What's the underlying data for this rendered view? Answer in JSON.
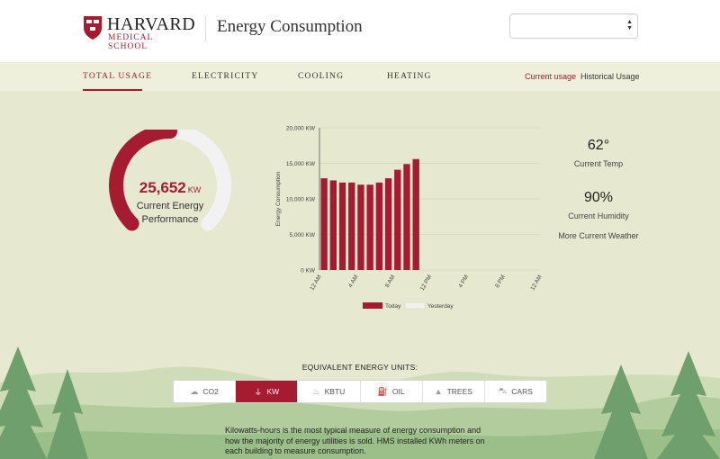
{
  "header": {
    "logo_main": "HARVARD",
    "logo_sub": "MEDICAL SCHOOL",
    "title": "Energy Consumption",
    "select_value": ""
  },
  "nav": {
    "tabs": [
      {
        "label": "TOTAL USAGE",
        "active": true
      },
      {
        "label": "ELECTRICITY",
        "active": false
      },
      {
        "label": "COOLING",
        "active": false
      },
      {
        "label": "HEATING",
        "active": false
      }
    ],
    "views": [
      {
        "label": "Current usage",
        "active": true
      },
      {
        "label": "Historical Usage",
        "active": false
      }
    ]
  },
  "gauge": {
    "value": "25,652",
    "unit": "KW",
    "label_line1": "Current Energy",
    "label_line2": "Performance",
    "fraction": 0.5,
    "fill_color": "#a51c30",
    "track_color": "#f2f2f2"
  },
  "weather": {
    "temp": "62°",
    "temp_label": "Current Temp",
    "humidity": "90%",
    "humidity_label": "Current Humidity",
    "more_link": "More Current Weather"
  },
  "chart_data": {
    "type": "bar",
    "ylabel": "Energy Consumption",
    "y_ticks": [
      "0 KW",
      "5,000 KW",
      "10,000 KW",
      "15,000 KW",
      "20,000 KW"
    ],
    "ylim": [
      0,
      20000
    ],
    "x_ticks": [
      "12 AM",
      "4 AM",
      "8 AM",
      "12 PM",
      "4 PM",
      "8 PM",
      "12 AM"
    ],
    "x_tick_hours": [
      0,
      4,
      8,
      12,
      16,
      20,
      24
    ],
    "hours_total": 24,
    "grid": true,
    "series": [
      {
        "name": "Today",
        "color": "#a51c30",
        "hours": [
          0,
          1,
          2,
          3,
          4,
          5,
          6,
          7,
          8,
          9,
          10
        ],
        "values": [
          12900,
          12600,
          12300,
          12300,
          12000,
          12000,
          12300,
          12900,
          14100,
          14900,
          15600
        ]
      },
      {
        "name": "Yesterday",
        "color": "#f2f2ea",
        "hours": [],
        "values": []
      }
    ],
    "legend": "bottom"
  },
  "units": {
    "title": "EQUIVALENT ENERGY UNITS:",
    "buttons": [
      {
        "label": "CO2",
        "icon": "cloud-icon",
        "glyph": "☁",
        "active": false
      },
      {
        "label": "KW",
        "icon": "plug-icon",
        "glyph": "⏚",
        "active": true
      },
      {
        "label": "KBTU",
        "icon": "flame-icon",
        "glyph": "♨",
        "active": false
      },
      {
        "label": "OIL",
        "icon": "oil-can-icon",
        "glyph": "⛽",
        "active": false
      },
      {
        "label": "TREES",
        "icon": "tree-icon",
        "glyph": "▲",
        "active": false
      },
      {
        "label": "CARS",
        "icon": "car-icon",
        "glyph": "⛍",
        "active": false
      }
    ]
  },
  "description": "Kilowatts-hours is the most typical measure of energy consumption and how the majority of energy utilities is sold. HMS installed KWh meters on each building to measure consumption."
}
